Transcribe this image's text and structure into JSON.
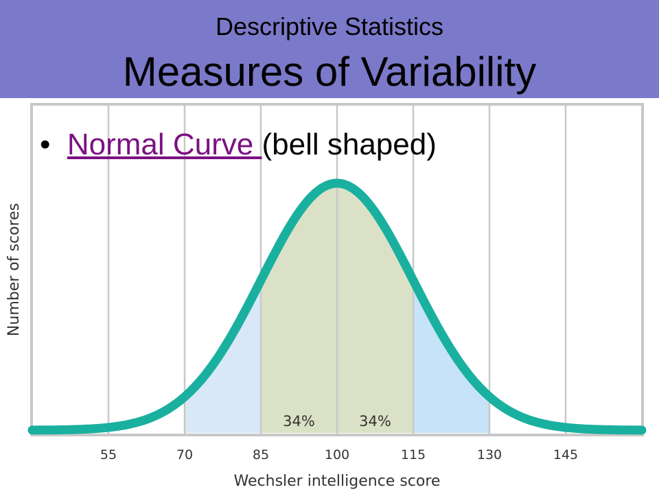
{
  "slide": {
    "subtitle": "Descriptive Statistics",
    "title": "Measures of Variability",
    "bullet_marker": "•",
    "bullet_link": "Normal Curve ",
    "bullet_rest": "(bell shaped)",
    "link_color": "#7b1182",
    "header_color": "#7b79c9"
  },
  "chart_data": {
    "type": "area",
    "distribution": "normal",
    "mean": 100,
    "sd": 15,
    "xlabel": "Wechsler intelligence score",
    "ylabel": "Number of scores",
    "xlim": [
      40,
      160
    ],
    "x_ticks": [
      55,
      70,
      85,
      100,
      115,
      130,
      145
    ],
    "grid": true,
    "curve_color": "#1ab0a0",
    "bands": [
      {
        "from": 70,
        "to": 85,
        "color": "#d9e8f7"
      },
      {
        "from": 85,
        "to": 100,
        "color": "#dbe1c6",
        "label": "34%"
      },
      {
        "from": 100,
        "to": 115,
        "color": "#dbe1c6",
        "label": "34%"
      },
      {
        "from": 115,
        "to": 130,
        "color": "#c7e3f7"
      }
    ]
  }
}
